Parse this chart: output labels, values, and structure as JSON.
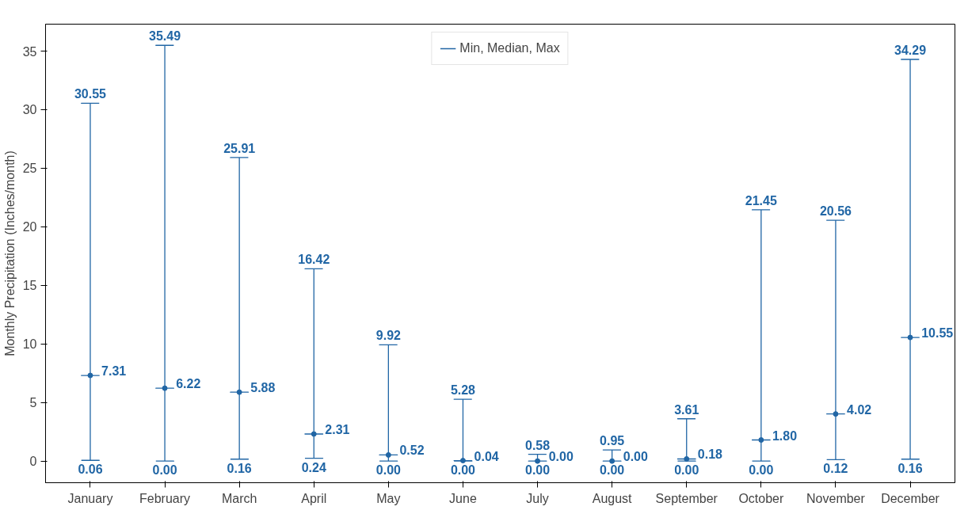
{
  "chart_data": {
    "type": "scatter",
    "ylabel": "Monthly Precipitation (Inches/month)",
    "categories": [
      "January",
      "February",
      "March",
      "April",
      "May",
      "June",
      "July",
      "August",
      "September",
      "October",
      "November",
      "December"
    ],
    "ylim": [
      -1.85,
      37.3
    ],
    "yticks": [
      0,
      5,
      10,
      15,
      20,
      25,
      30,
      35
    ],
    "grid": false,
    "legend": "top",
    "marker": "circle",
    "series": [
      {
        "name": "Min, Median, Max",
        "color": "#2166a5",
        "values": [
          7.31,
          6.22,
          5.88,
          2.31,
          0.52,
          0.04,
          0.0,
          0.0,
          0.18,
          1.8,
          4.02,
          10.55
        ],
        "value_labels": [
          "7.31",
          "6.22",
          "5.88",
          "2.31",
          "0.52",
          "0.04",
          "0.00",
          "0.00",
          "0.18",
          "1.80",
          "4.02",
          "10.55"
        ],
        "errors": [
          [
            0.06,
            30.55
          ],
          [
            0.0,
            35.49
          ],
          [
            0.16,
            25.91
          ],
          [
            0.24,
            16.42
          ],
          [
            0.0,
            9.92
          ],
          [
            0.0,
            5.28
          ],
          [
            0.0,
            0.58
          ],
          [
            0.0,
            0.95
          ],
          [
            0.0,
            3.61
          ],
          [
            0.0,
            21.45
          ],
          [
            0.12,
            20.56
          ],
          [
            0.16,
            34.29
          ]
        ]
      }
    ],
    "annotations": [
      "30.55",
      "35.49",
      "25.91",
      "16.42",
      "9.92",
      "5.28",
      "0.58",
      "0.95",
      "3.61",
      "21.45",
      "20.56",
      "34.29",
      "0.06",
      "0.00",
      "0.16",
      "0.24",
      "0.00",
      "0.00",
      "0.00",
      "0.00",
      "0.00",
      "0.00",
      "0.12",
      "0.16"
    ]
  }
}
